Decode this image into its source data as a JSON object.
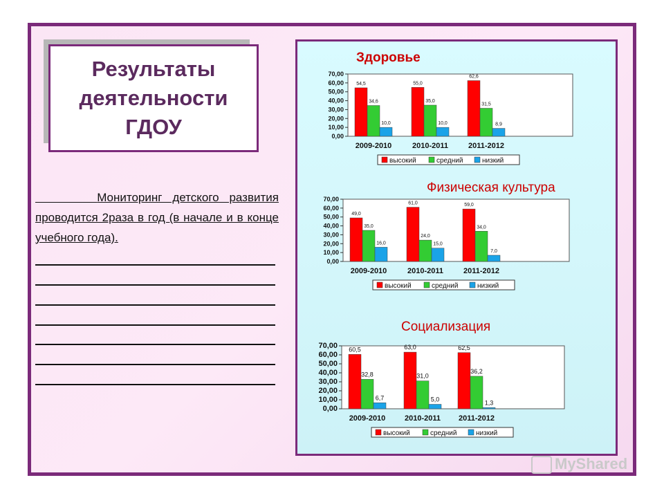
{
  "slide": {
    "title": "Результаты\nдеятельности\nГДОУ",
    "paragraph_indent": "      ",
    "paragraph": "Мониторинг детского развития проводится 2раза в год (в начале и в конце учебного года)."
  },
  "watermark": {
    "text": "MyShared",
    "icon": "presentation-icon"
  },
  "colors": {
    "frame": "#7b2a7a",
    "high": "#ff0000",
    "mid": "#33cc33",
    "low": "#1aa3e8",
    "chart_title": "#cc0000"
  },
  "chart_data": [
    {
      "type": "bar",
      "title": "Здоровье",
      "categories": [
        "2009-2010",
        "2010-2011",
        "2011-2012"
      ],
      "series": [
        {
          "name": "высокий",
          "values": [
            54.5,
            55.0,
            62.6
          ],
          "labels": [
            "54,5",
            "55,0",
            "62,6"
          ]
        },
        {
          "name": "средний",
          "values": [
            34.6,
            35.0,
            31.5
          ],
          "labels": [
            "34,6",
            "35,0",
            "31,5"
          ]
        },
        {
          "name": "низкий",
          "values": [
            10.0,
            10.0,
            8.9
          ],
          "labels": [
            "10,0",
            "10,0",
            "8,9"
          ]
        }
      ],
      "yticks": [
        "70,00",
        "60,00",
        "50,00",
        "40,00",
        "30,00",
        "20,00",
        "10,00",
        "0,00"
      ],
      "ylim": [
        0,
        70
      ],
      "legend": "bottom"
    },
    {
      "type": "bar",
      "title": "Физическая культура",
      "categories": [
        "2009-2010",
        "2010-2011",
        "2011-2012"
      ],
      "series": [
        {
          "name": "высокий",
          "values": [
            49.0,
            61.0,
            59.0
          ],
          "labels": [
            "49,0",
            "61,0",
            "59,0"
          ]
        },
        {
          "name": "средний",
          "values": [
            35.0,
            24.0,
            34.0
          ],
          "labels": [
            "35,0",
            "24,0",
            "34,0"
          ]
        },
        {
          "name": "низкий",
          "values": [
            16.0,
            15.0,
            7.0
          ],
          "labels": [
            "16,0",
            "15,0",
            "7,0"
          ]
        }
      ],
      "yticks": [
        "70,00",
        "60,00",
        "50,00",
        "40,00",
        "30,00",
        "20,00",
        "10,00",
        "0,00"
      ],
      "ylim": [
        0,
        70
      ],
      "legend": "bottom"
    },
    {
      "type": "bar",
      "title": "Социализация",
      "categories": [
        "2009-2010",
        "2010-2011",
        "2011-2012"
      ],
      "series": [
        {
          "name": "высокий",
          "values": [
            60.5,
            63.0,
            62.5
          ],
          "labels": [
            "60,5",
            "63,0",
            "62,5"
          ]
        },
        {
          "name": "средний",
          "values": [
            32.8,
            31.0,
            36.2
          ],
          "labels": [
            "32,8",
            "31,0",
            "36,2"
          ]
        },
        {
          "name": "низкий",
          "values": [
            6.7,
            5.0,
            1.3
          ],
          "labels": [
            "6,7",
            "5,0",
            "1,3"
          ]
        }
      ],
      "yticks": [
        "70,00",
        "60,00",
        "50,00",
        "40,00",
        "30,00",
        "20,00",
        "10,00",
        "0,00"
      ],
      "ylim": [
        0,
        70
      ],
      "legend": "bottom"
    }
  ]
}
